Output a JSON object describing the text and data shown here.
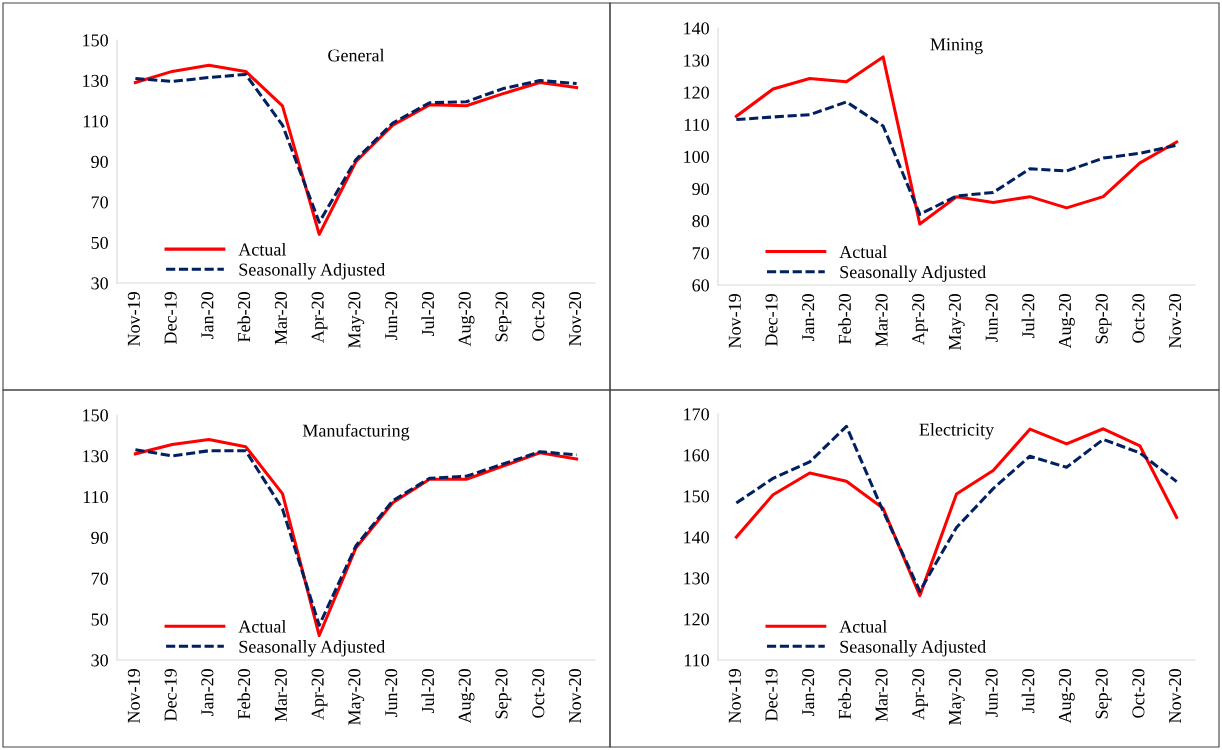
{
  "chart_data": [
    {
      "type": "line",
      "title": "General",
      "categories": [
        "Nov-19",
        "Dec-19",
        "Jan-20",
        "Feb-20",
        "Mar-20",
        "Apr-20",
        "May-20",
        "Jun-20",
        "Jul-20",
        "Aug-20",
        "Sep-20",
        "Oct-20",
        "Nov-20"
      ],
      "ylim": [
        30,
        150
      ],
      "yticks": [
        30,
        50,
        70,
        90,
        110,
        130,
        150
      ],
      "grid": false,
      "legend": "bottom left",
      "series": [
        {
          "name": "Actual",
          "color": "#ff0000",
          "line_style": "solid",
          "values": [
            129,
            134.5,
            137.5,
            134.5,
            117.5,
            54,
            90,
            108,
            118,
            117.5,
            123.5,
            129,
            126.5
          ]
        },
        {
          "name": "Seasonally Adjusted",
          "color": "#002060",
          "line_style": "dashed",
          "values": [
            131,
            129.5,
            131.5,
            133,
            108,
            60,
            91,
            109,
            119,
            119.5,
            126,
            130,
            128.5
          ]
        }
      ]
    },
    {
      "type": "line",
      "title": "Mining",
      "categories": [
        "Nov-19",
        "Dec-19",
        "Jan-20",
        "Feb-20",
        "Mar-20",
        "Apr-20",
        "May-20",
        "Jun-20",
        "Jul-20",
        "Aug-20",
        "Sep-20",
        "Oct-20",
        "Nov-20"
      ],
      "ylim": [
        60,
        140
      ],
      "yticks": [
        60,
        70,
        80,
        90,
        100,
        110,
        120,
        130,
        140
      ],
      "grid": false,
      "legend": "bottom left",
      "series": [
        {
          "name": "Actual",
          "color": "#ff0000",
          "line_style": "solid",
          "values": [
            112.5,
            121,
            124.3,
            123.3,
            131,
            79,
            87.5,
            85.7,
            87.5,
            84,
            87.5,
            98,
            104.5
          ]
        },
        {
          "name": "Seasonally Adjusted",
          "color": "#002060",
          "line_style": "dashed",
          "values": [
            111.5,
            112.3,
            113,
            117,
            109.5,
            82,
            87.7,
            88.8,
            96.2,
            95.5,
            99.5,
            101,
            103.5
          ]
        }
      ]
    },
    {
      "type": "line",
      "title": "Manufacturing",
      "categories": [
        "Nov-19",
        "Dec-19",
        "Jan-20",
        "Feb-20",
        "Mar-20",
        "Apr-20",
        "May-20",
        "Jun-20",
        "Jul-20",
        "Aug-20",
        "Sep-20",
        "Oct-20",
        "Nov-20"
      ],
      "ylim": [
        30,
        150
      ],
      "yticks": [
        30,
        50,
        70,
        90,
        110,
        130,
        150
      ],
      "grid": false,
      "legend": "bottom left",
      "series": [
        {
          "name": "Actual",
          "color": "#ff0000",
          "line_style": "solid",
          "values": [
            131,
            135.5,
            138,
            134.5,
            111.5,
            42,
            85,
            107,
            118.5,
            118.5,
            125,
            131.5,
            128.5
          ]
        },
        {
          "name": "Seasonally Adjusted",
          "color": "#002060",
          "line_style": "dashed",
          "values": [
            133,
            130,
            132.5,
            132.5,
            104,
            47,
            86,
            108,
            119,
            120,
            126,
            132,
            130.5
          ]
        }
      ]
    },
    {
      "type": "line",
      "title": "Electricity",
      "categories": [
        "Nov-19",
        "Dec-19",
        "Jan-20",
        "Feb-20",
        "Mar-20",
        "Apr-20",
        "May-20",
        "Jun-20",
        "Jul-20",
        "Aug-20",
        "Sep-20",
        "Oct-20",
        "Nov-20"
      ],
      "ylim": [
        110,
        170
      ],
      "yticks": [
        110,
        120,
        130,
        140,
        150,
        160,
        170
      ],
      "grid": false,
      "legend": "bottom left",
      "series": [
        {
          "name": "Actual",
          "color": "#ff0000",
          "line_style": "solid",
          "values": [
            140,
            150.3,
            155.6,
            153.6,
            147,
            125.7,
            150.5,
            156.2,
            166.3,
            162.7,
            166.4,
            162.2,
            144.8
          ]
        },
        {
          "name": "Seasonally Adjusted",
          "color": "#002060",
          "line_style": "dashed",
          "values": [
            148.3,
            154.3,
            158.3,
            167,
            146.3,
            126.8,
            142.3,
            151.8,
            159.7,
            157,
            163.8,
            160.5,
            153.5
          ]
        }
      ]
    }
  ]
}
